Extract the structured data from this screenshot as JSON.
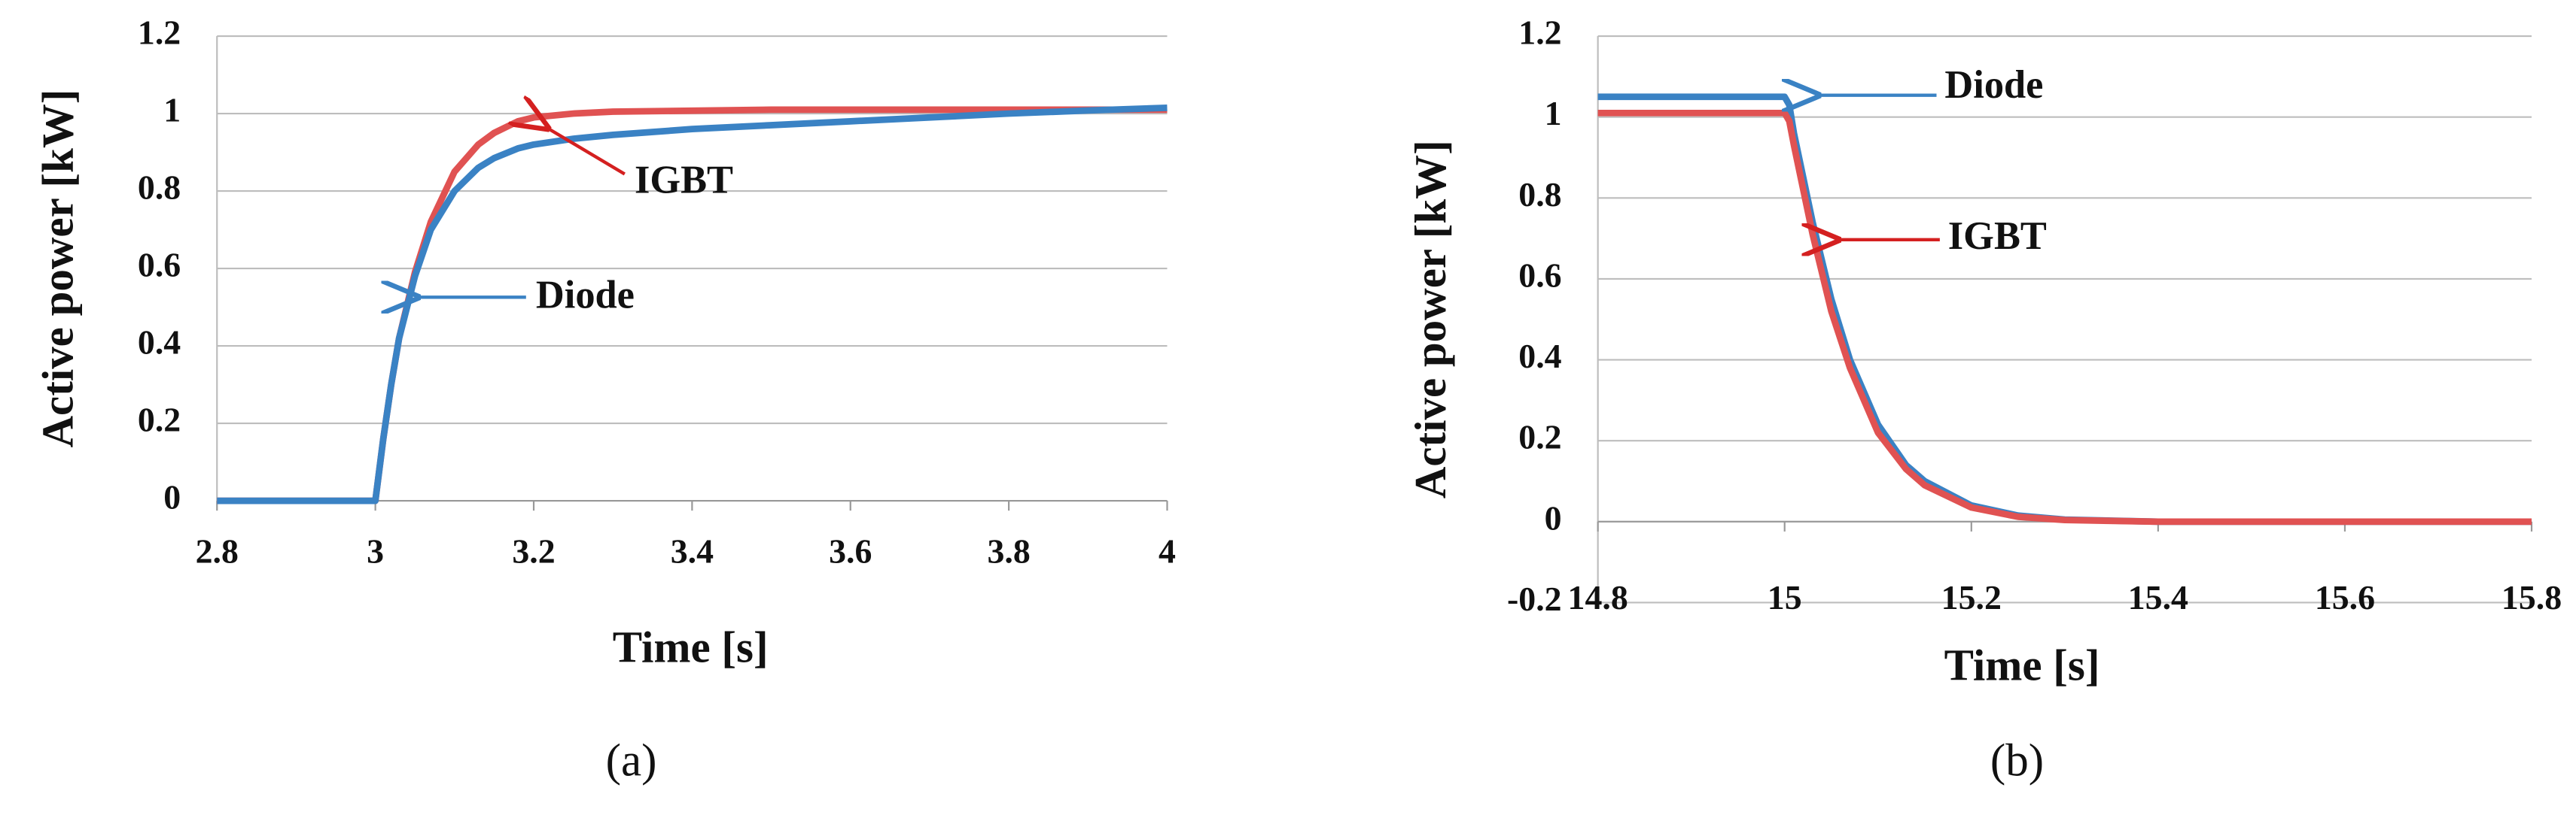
{
  "chart_data": [
    {
      "type": "line",
      "panel_label": "(a)",
      "xlabel": "Time [s]",
      "ylabel": "Active power [kW]",
      "xlim": [
        2.8,
        4
      ],
      "xticks": [
        2.8,
        3,
        3.2,
        3.4,
        3.6,
        3.8,
        4
      ],
      "ylim": [
        0,
        1.2
      ],
      "yticks": [
        0,
        0.2,
        0.4,
        0.6,
        0.8,
        1,
        1.2
      ],
      "grid": true,
      "series": [
        {
          "name": "IGBT",
          "color": "#e05252",
          "x": [
            2.8,
            3,
            3.01,
            3.02,
            3.03,
            3.05,
            3.07,
            3.1,
            3.13,
            3.15,
            3.18,
            3.2,
            3.25,
            3.3,
            3.5,
            3.8,
            4
          ],
          "values": [
            0,
            0,
            0.16,
            0.3,
            0.42,
            0.59,
            0.72,
            0.85,
            0.92,
            0.95,
            0.98,
            0.99,
            1.0,
            1.005,
            1.01,
            1.01,
            1.01
          ]
        },
        {
          "name": "Diode",
          "color": "#3a82c4",
          "x": [
            2.8,
            3,
            3.01,
            3.02,
            3.03,
            3.05,
            3.07,
            3.1,
            3.13,
            3.15,
            3.18,
            3.2,
            3.25,
            3.3,
            3.4,
            3.5,
            3.6,
            3.7,
            3.8,
            3.9,
            4
          ],
          "values": [
            0,
            0,
            0.16,
            0.3,
            0.42,
            0.58,
            0.7,
            0.8,
            0.86,
            0.885,
            0.91,
            0.92,
            0.935,
            0.945,
            0.96,
            0.97,
            0.98,
            0.99,
            1.0,
            1.008,
            1.015
          ]
        }
      ],
      "annotations": [
        "IGBT",
        "Diode"
      ]
    },
    {
      "type": "line",
      "panel_label": "(b)",
      "xlabel": "Time [s]",
      "ylabel": "Active power [kW]",
      "xlim": [
        14.8,
        15.8
      ],
      "xticks": [
        14.8,
        15,
        15.2,
        15.4,
        15.6,
        15.8
      ],
      "ylim": [
        -0.2,
        1.2
      ],
      "yticks": [
        -0.2,
        0,
        0.2,
        0.4,
        0.6,
        0.8,
        1,
        1.2
      ],
      "grid": true,
      "series": [
        {
          "name": "Diode",
          "color": "#3a82c4",
          "x": [
            14.8,
            15.0,
            15.005,
            15.01,
            15.02,
            15.03,
            15.05,
            15.07,
            15.1,
            15.13,
            15.15,
            15.2,
            15.25,
            15.3,
            15.4,
            15.8
          ],
          "values": [
            1.05,
            1.05,
            1.03,
            0.96,
            0.85,
            0.74,
            0.55,
            0.4,
            0.24,
            0.14,
            0.1,
            0.04,
            0.015,
            0.005,
            0,
            0
          ]
        },
        {
          "name": "IGBT",
          "color": "#e05252",
          "x": [
            14.8,
            15.0,
            15.005,
            15.01,
            15.02,
            15.03,
            15.05,
            15.07,
            15.1,
            15.13,
            15.15,
            15.2,
            15.25,
            15.3,
            15.4,
            15.8
          ],
          "values": [
            1.01,
            1.01,
            0.99,
            0.93,
            0.82,
            0.71,
            0.52,
            0.38,
            0.22,
            0.13,
            0.09,
            0.035,
            0.012,
            0.004,
            0,
            0
          ]
        }
      ],
      "annotations": [
        "Diode",
        "IGBT"
      ]
    }
  ]
}
